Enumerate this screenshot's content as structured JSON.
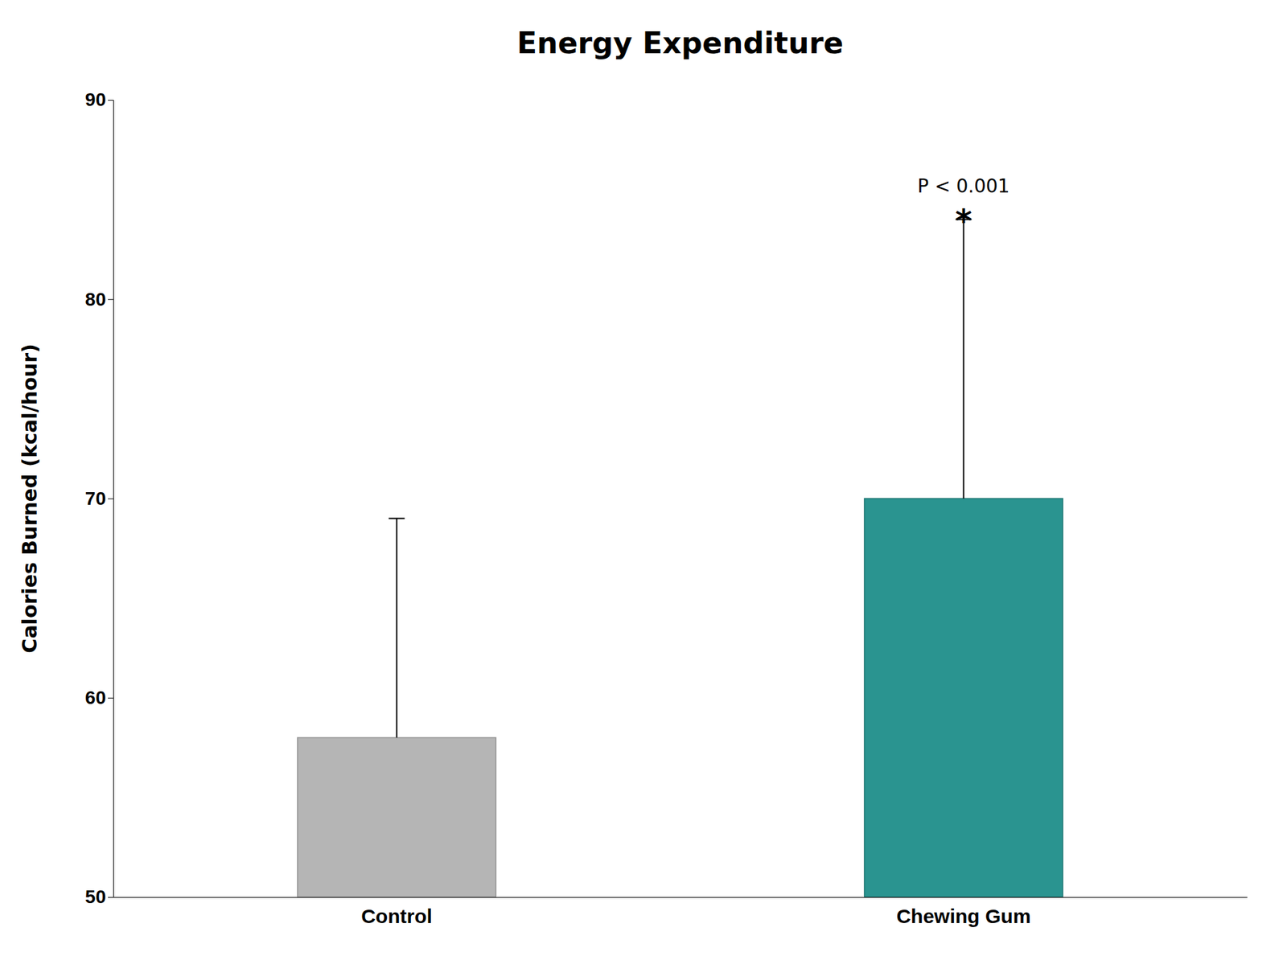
{
  "chart_data": {
    "type": "bar",
    "title": "Energy Expenditure",
    "ylabel": "Calories Burned (kcal/hour)",
    "categories": [
      "Control",
      "Chewing Gum"
    ],
    "values": [
      58,
      70
    ],
    "errors_up": [
      11,
      14
    ],
    "colors": [
      "#b5b5b5",
      "#2a9490"
    ],
    "ylim": [
      50,
      90
    ],
    "yticks": [
      50,
      60,
      70,
      80,
      90
    ],
    "grid": false,
    "annotations": [
      {
        "text": "P < 0.001",
        "category": "Chewing Gum"
      },
      {
        "text": "*",
        "category": "Chewing Gum"
      }
    ]
  }
}
